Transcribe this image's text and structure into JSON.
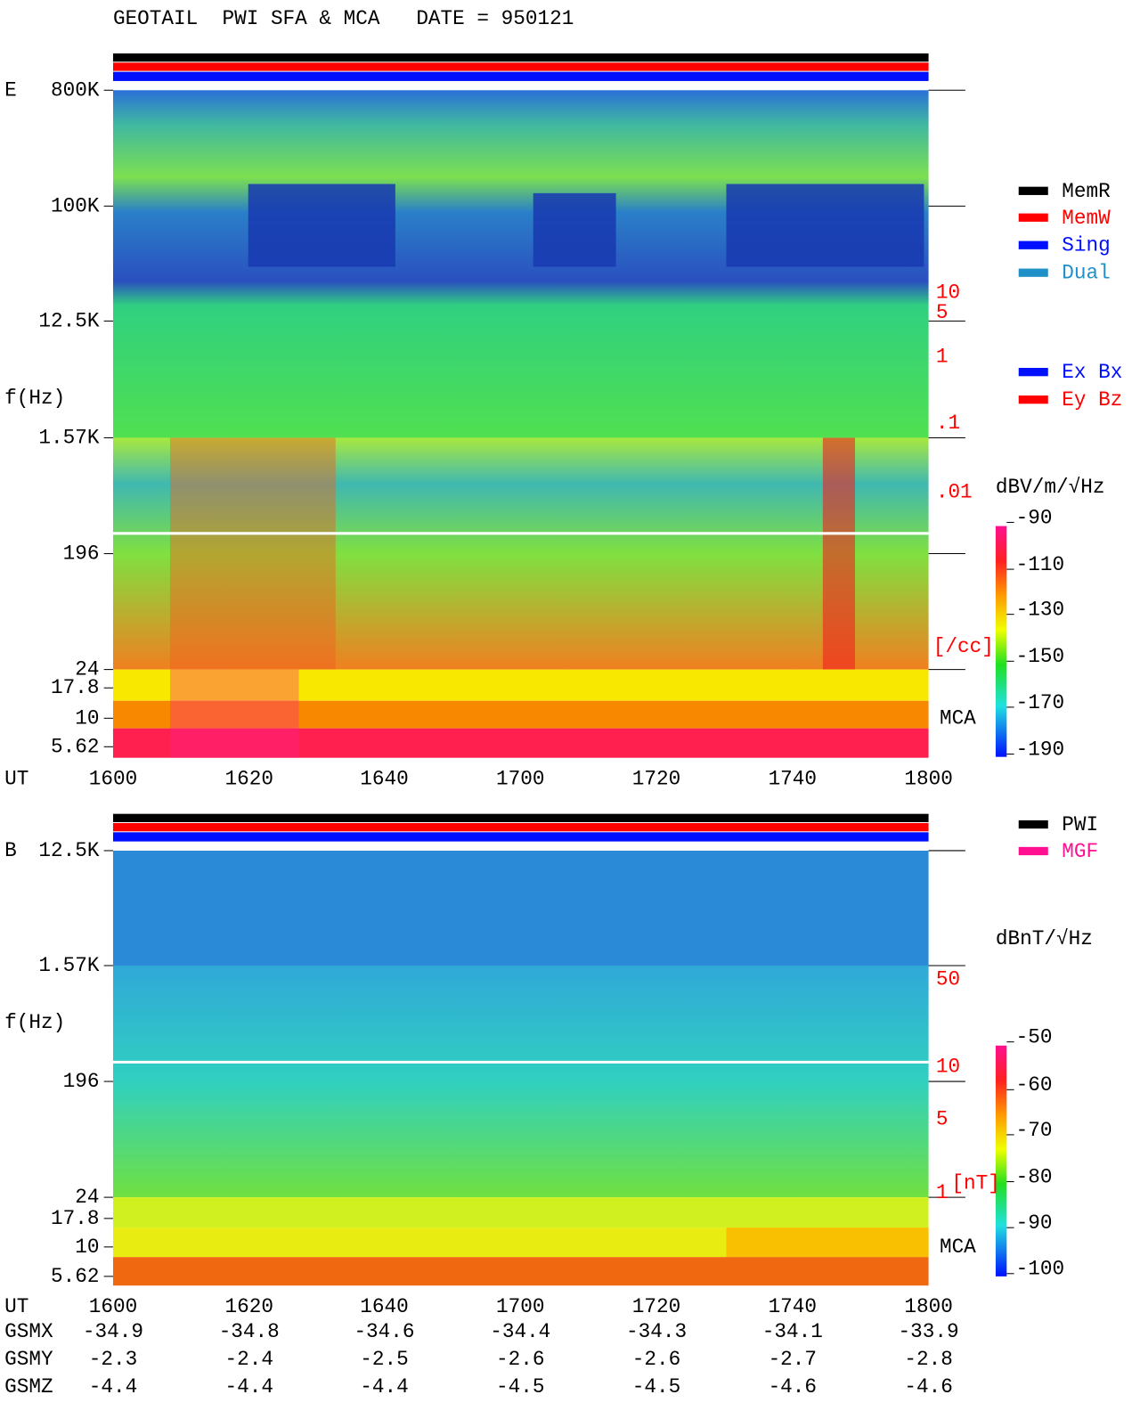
{
  "title": "GEOTAIL  PWI SFA & MCA   DATE = 950121",
  "panels": [
    {
      "name": "E",
      "freq_label": "f(Hz)",
      "freq_ticks": [
        "800K",
        "100K",
        "12.5K",
        "1.57K",
        "196",
        "24",
        "17.8",
        "10",
        "5.62"
      ],
      "right_scale": [
        "10",
        "5",
        "1",
        ".1",
        ".01"
      ],
      "right_unit": "[/cc]",
      "mca": "MCA",
      "time_label": "UT",
      "time_ticks": [
        "1600",
        "1620",
        "1640",
        "1700",
        "1720",
        "1740",
        "1800"
      ],
      "colorbar_unit": "dBV/m/√Hz",
      "colorbar_ticks": [
        "-90",
        "-110",
        "-130",
        "-150",
        "-170",
        "-190"
      ]
    },
    {
      "name": "B",
      "freq_label": "f(Hz)",
      "freq_ticks": [
        "12.5K",
        "1.57K",
        "196",
        "24",
        "17.8",
        "10",
        "5.62"
      ],
      "right_scale": [
        "50",
        "10",
        "5",
        "1"
      ],
      "right_unit": "[nT]",
      "mca": "MCA",
      "time_label": "UT",
      "time_ticks": [
        "1600",
        "1620",
        "1640",
        "1700",
        "1720",
        "1740",
        "1800"
      ],
      "colorbar_unit": "dBnT/√Hz",
      "colorbar_ticks": [
        "-50",
        "-60",
        "-70",
        "-80",
        "-90",
        "-100"
      ]
    }
  ],
  "legend_status": [
    "MemR",
    "MemW",
    "Sing",
    "Dual"
  ],
  "legend_mode": [
    "Ex Bx",
    "Ey Bz"
  ],
  "legend_source": [
    "PWI",
    "MGF"
  ],
  "orbit": [
    {
      "name": "GSMX",
      "values": [
        "-34.9",
        "-34.8",
        "-34.6",
        "-34.4",
        "-34.3",
        "-34.1",
        "-33.9"
      ]
    },
    {
      "name": "GSMY",
      "values": [
        "-2.3",
        "-2.4",
        "-2.5",
        "-2.6",
        "-2.6",
        "-2.7",
        "-2.8"
      ]
    },
    {
      "name": "GSMZ",
      "values": [
        "-4.4",
        "-4.4",
        "-4.4",
        "-4.5",
        "-4.5",
        "-4.6",
        "-4.6"
      ]
    }
  ]
}
